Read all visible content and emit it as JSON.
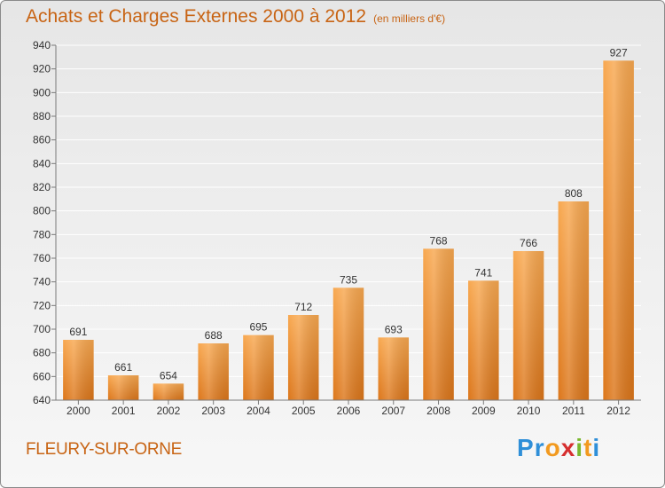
{
  "title": "Achats et Charges Externes 2000 à 2012",
  "unit": "(en milliers d'€)",
  "commune": "FLEURY-SUR-ORNE",
  "logo": {
    "letters": [
      "P",
      "r",
      "o",
      "x",
      "i",
      "t",
      "i"
    ],
    "colors": [
      "#2f8fd8",
      "#2f8fd8",
      "#f29a1f",
      "#d62f2f",
      "#7ab82e",
      "#f29a1f",
      "#2f8fd8"
    ]
  },
  "colors": {
    "bar_light": "#f8a850",
    "bar_dark": "#dc761a",
    "axis": "#7a7a7a",
    "grid": "#ffffff",
    "text": "#333333"
  },
  "chart_data": {
    "type": "bar",
    "categories": [
      "2000",
      "2001",
      "2002",
      "2003",
      "2004",
      "2005",
      "2006",
      "2007",
      "2008",
      "2009",
      "2010",
      "2011",
      "2012"
    ],
    "values": [
      691,
      661,
      654,
      688,
      695,
      712,
      735,
      693,
      768,
      741,
      766,
      808,
      927
    ],
    "ylim": [
      640,
      940
    ],
    "yticks": [
      640,
      660,
      680,
      700,
      720,
      740,
      760,
      780,
      800,
      820,
      840,
      860,
      880,
      900,
      920,
      940
    ],
    "xlabel": "",
    "ylabel": "",
    "grid": true,
    "data_labels": true
  }
}
